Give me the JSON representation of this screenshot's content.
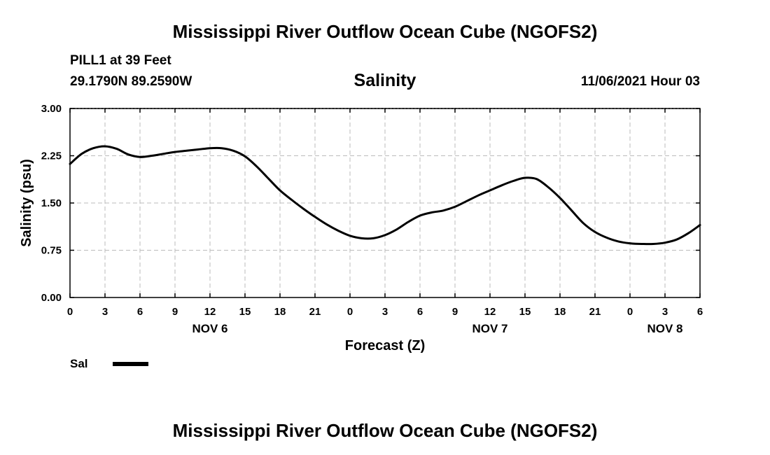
{
  "header": {
    "title": "Mississippi River Outflow Ocean Cube (NGOFS2)",
    "station": "PILL1 at 39 Feet",
    "coordinates": "29.1790N  89.2590W",
    "datetime": "11/06/2021 Hour 03"
  },
  "footer": {
    "title": "Mississippi River Outflow Ocean Cube (NGOFS2)"
  },
  "chart_data": {
    "type": "line",
    "title": "Salinity",
    "xlabel": "Forecast (Z)",
    "ylabel": "Salinity (psu)",
    "xlim": [
      0,
      54
    ],
    "ylim": [
      0,
      3
    ],
    "grid": true,
    "legend_position": "bottom-left",
    "line_color": "#000000",
    "x_ticks": [
      0,
      3,
      6,
      9,
      12,
      15,
      18,
      21,
      24,
      27,
      30,
      33,
      36,
      39,
      42,
      45,
      48,
      51,
      54
    ],
    "x_tick_labels": [
      "0",
      "3",
      "6",
      "9",
      "12",
      "15",
      "18",
      "21",
      "0",
      "3",
      "6",
      "9",
      "12",
      "15",
      "18",
      "21",
      "0",
      "3",
      "6"
    ],
    "y_ticks": [
      0,
      0.75,
      1.5,
      2.25,
      3
    ],
    "y_tick_labels": [
      "0.00",
      "0.75",
      "1.50",
      "2.25",
      "3.00"
    ],
    "date_labels": [
      {
        "text": "NOV 6",
        "x": 12
      },
      {
        "text": "NOV 7",
        "x": 36
      },
      {
        "text": "NOV 8",
        "x": 51
      }
    ],
    "series": [
      {
        "name": "Sal",
        "x": [
          0,
          1,
          2,
          3,
          4,
          5,
          6,
          7,
          8,
          9,
          10,
          11,
          12,
          13,
          14,
          15,
          16,
          17,
          18,
          19,
          20,
          21,
          22,
          23,
          24,
          25,
          26,
          27,
          28,
          29,
          30,
          31,
          32,
          33,
          34,
          35,
          36,
          37,
          38,
          39,
          40,
          41,
          42,
          43,
          44,
          45,
          46,
          47,
          48,
          49,
          50,
          51,
          52,
          53,
          54
        ],
        "values": [
          2.12,
          2.28,
          2.37,
          2.4,
          2.36,
          2.27,
          2.23,
          2.25,
          2.28,
          2.31,
          2.33,
          2.35,
          2.37,
          2.37,
          2.33,
          2.24,
          2.08,
          1.89,
          1.7,
          1.55,
          1.41,
          1.28,
          1.16,
          1.06,
          0.98,
          0.94,
          0.94,
          0.99,
          1.08,
          1.2,
          1.3,
          1.35,
          1.38,
          1.44,
          1.53,
          1.62,
          1.7,
          1.78,
          1.85,
          1.9,
          1.88,
          1.75,
          1.58,
          1.38,
          1.18,
          1.04,
          0.95,
          0.89,
          0.86,
          0.85,
          0.85,
          0.87,
          0.92,
          1.02,
          1.15
        ]
      }
    ]
  }
}
